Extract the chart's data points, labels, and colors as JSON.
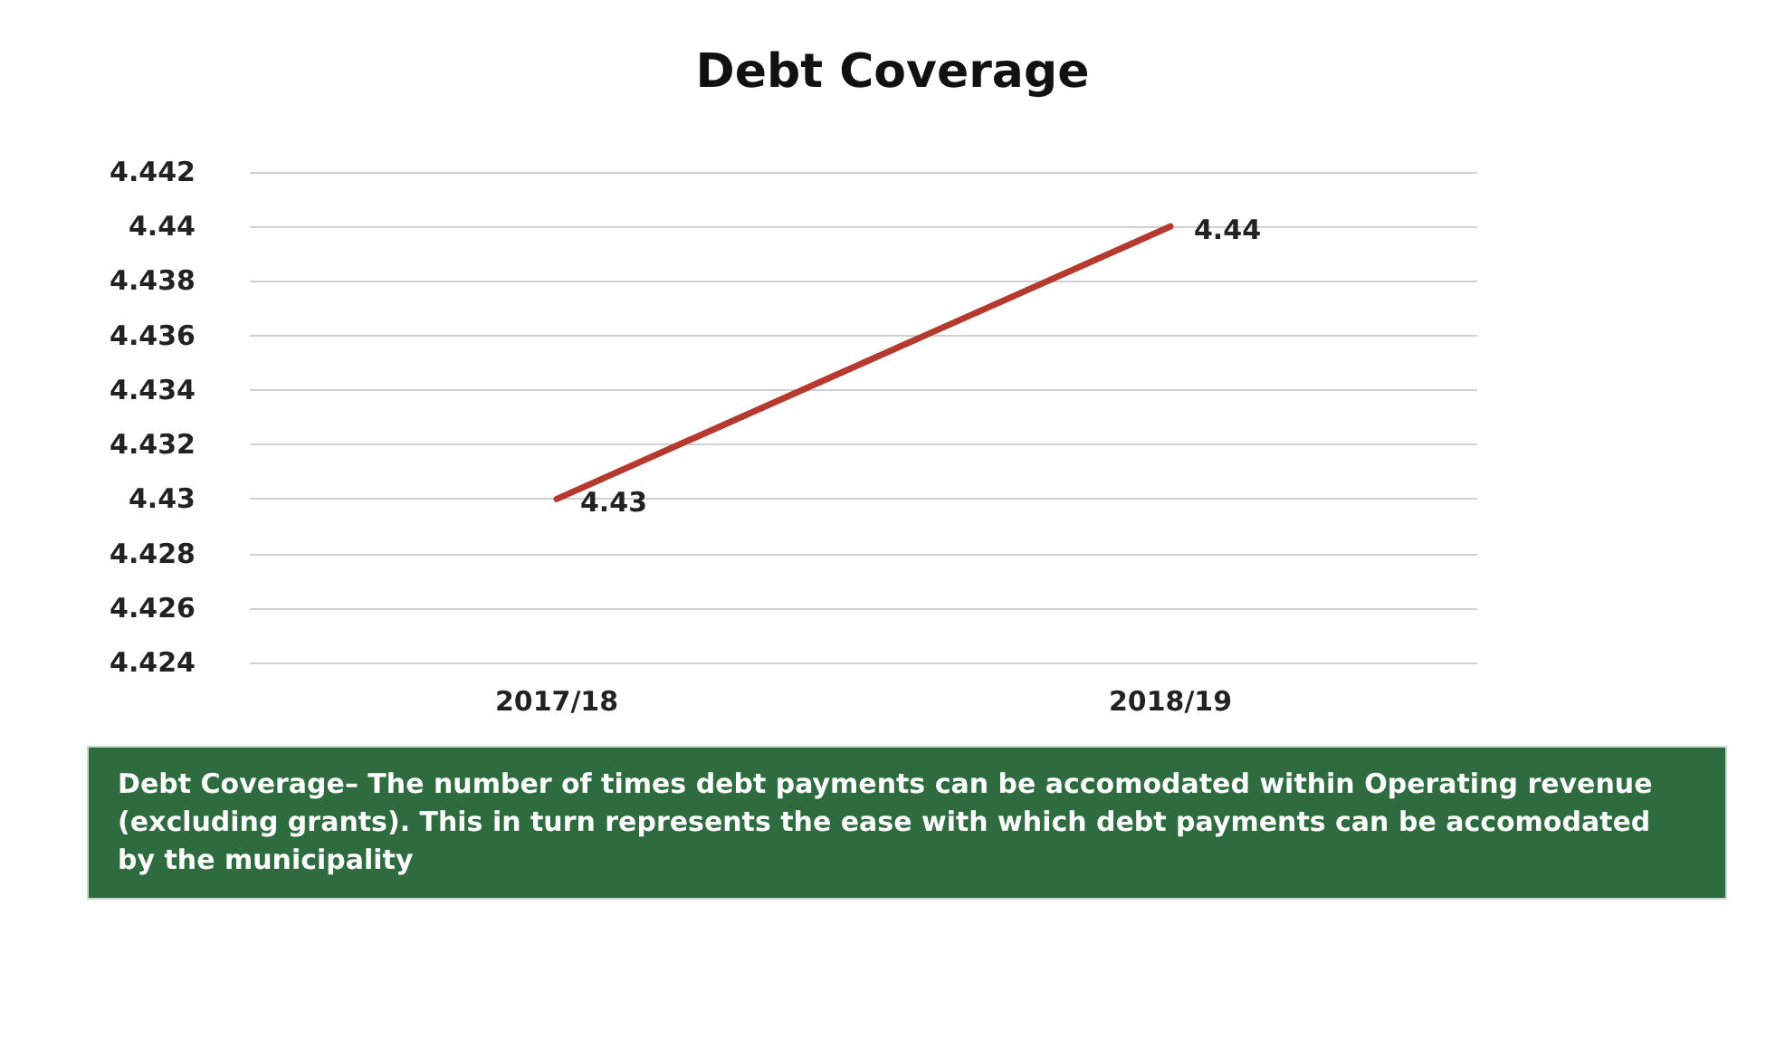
{
  "chart_data": {
    "type": "line",
    "title": "Debt Coverage",
    "categories": [
      "2017/18",
      "2018/19"
    ],
    "series": [
      {
        "color": "#b5392f",
        "values": [
          4.43,
          4.44
        ]
      }
    ],
    "ylim": [
      4.424,
      4.442
    ],
    "yticks": [
      4.424,
      4.426,
      4.428,
      4.43,
      4.432,
      4.434,
      4.436,
      4.438,
      4.44,
      4.442
    ],
    "grid": "y",
    "data_labels": true,
    "marker": "none",
    "line_style": "solid",
    "annotations": [
      "Debt Coverage–  The number of times debt payments can be accomodated within Operating revenue (excluding grants).  This in turn represents the ease with which debt payments can be accomodated by the municipality"
    ]
  }
}
